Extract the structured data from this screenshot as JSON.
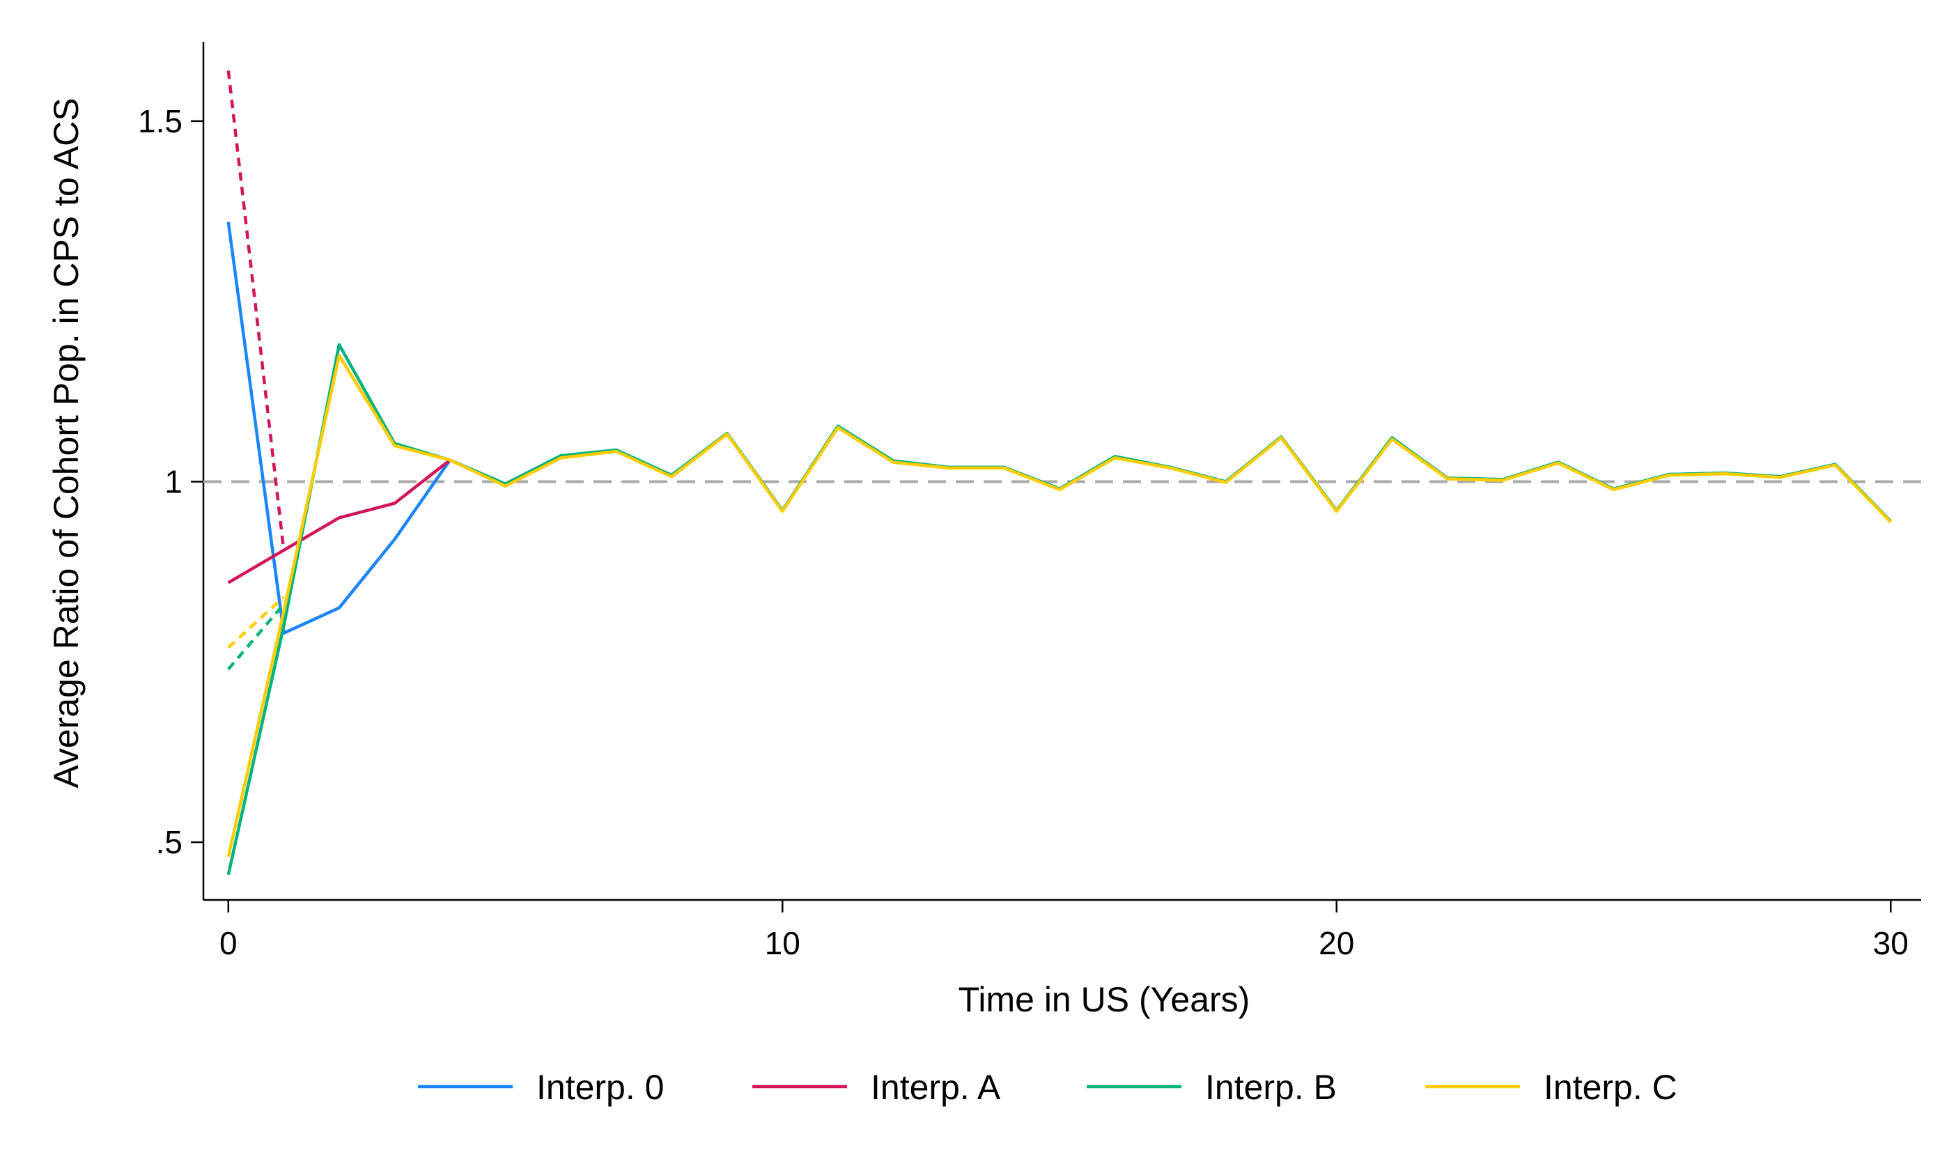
{
  "chart_data": {
    "type": "line",
    "title": "",
    "xlabel": "Time in US (Years)",
    "ylabel": "Average Ratio of Cohort Pop. in CPS to ACS",
    "xlim": [
      -0.45,
      30.55
    ],
    "ylim": [
      0.42,
      1.61
    ],
    "x_ticks": [
      0,
      10,
      20,
      30
    ],
    "y_ticks": [
      0.5,
      1,
      1.5
    ],
    "x_tick_labels": [
      "0",
      "10",
      "20",
      "30"
    ],
    "y_tick_labels": [
      ".5",
      "1",
      "1.5"
    ],
    "grid": false,
    "legend_position": "bottom",
    "reference_line": {
      "y": 1,
      "style": "dashed",
      "color": "#aaaaaa"
    },
    "series": [
      {
        "name": "Interp. 0",
        "color": "#1a85ff",
        "points": [
          [
            0,
            1.36
          ],
          [
            1,
            0.79
          ],
          [
            2,
            0.825
          ],
          [
            3,
            0.92
          ],
          [
            4,
            1.03
          ],
          [
            5,
            0.995
          ],
          [
            6,
            1.035
          ],
          [
            7,
            1.043
          ],
          [
            8,
            1.008
          ],
          [
            9,
            1.067
          ],
          [
            10,
            0.96
          ],
          [
            11,
            1.076
          ],
          [
            12,
            1.028
          ],
          [
            13,
            1.02
          ],
          [
            14,
            1.02
          ],
          [
            15,
            0.99
          ],
          [
            16,
            1.034
          ],
          [
            17,
            1.02
          ],
          [
            18,
            1.0
          ],
          [
            19,
            1.062
          ],
          [
            20,
            0.96
          ],
          [
            21,
            1.06
          ],
          [
            22,
            1.005
          ],
          [
            23,
            1.003
          ],
          [
            24,
            1.027
          ],
          [
            25,
            0.99
          ],
          [
            26,
            1.01
          ],
          [
            27,
            1.012
          ],
          [
            28,
            1.007
          ],
          [
            29,
            1.024
          ],
          [
            30,
            0.945
          ]
        ],
        "dashed_segments": []
      },
      {
        "name": "Interp. A",
        "color": "#d4145a",
        "points": [
          [
            0,
            0.86
          ],
          [
            1,
            0.905
          ],
          [
            2,
            0.95
          ],
          [
            3,
            0.97
          ],
          [
            4,
            1.03
          ]
        ],
        "dashed_segments": [
          [
            [
              0,
              1.57
            ],
            [
              1,
              0.905
            ]
          ]
        ]
      },
      {
        "name": "Interp. B",
        "color": "#00b37e",
        "points": [
          [
            0,
            0.455
          ],
          [
            1,
            0.8
          ],
          [
            2,
            1.19
          ],
          [
            3,
            1.053
          ],
          [
            4,
            1.03
          ],
          [
            5,
            0.997
          ],
          [
            6,
            1.036
          ],
          [
            7,
            1.044
          ],
          [
            8,
            1.009
          ],
          [
            9,
            1.067
          ],
          [
            10,
            0.96
          ],
          [
            11,
            1.077
          ],
          [
            12,
            1.029
          ],
          [
            13,
            1.02
          ],
          [
            14,
            1.02
          ],
          [
            15,
            0.99
          ],
          [
            16,
            1.035
          ],
          [
            17,
            1.02
          ],
          [
            18,
            1.0
          ],
          [
            19,
            1.062
          ],
          [
            20,
            0.96
          ],
          [
            21,
            1.061
          ],
          [
            22,
            1.005
          ],
          [
            23,
            1.003
          ],
          [
            24,
            1.027
          ],
          [
            25,
            0.99
          ],
          [
            26,
            1.01
          ],
          [
            27,
            1.012
          ],
          [
            28,
            1.007
          ],
          [
            29,
            1.024
          ],
          [
            30,
            0.945
          ]
        ],
        "dashed_segments": [
          [
            [
              0,
              0.74
            ],
            [
              1,
              0.83
            ]
          ]
        ]
      },
      {
        "name": "Interp. C",
        "color": "#ffcc00",
        "points": [
          [
            0,
            0.48
          ],
          [
            1,
            0.82
          ],
          [
            2,
            1.175
          ],
          [
            3,
            1.05
          ],
          [
            4,
            1.03
          ],
          [
            5,
            0.994
          ],
          [
            6,
            1.033
          ],
          [
            7,
            1.042
          ],
          [
            8,
            1.007
          ],
          [
            9,
            1.066
          ],
          [
            10,
            0.959
          ],
          [
            11,
            1.075
          ],
          [
            12,
            1.027
          ],
          [
            13,
            1.019
          ],
          [
            14,
            1.019
          ],
          [
            15,
            0.989
          ],
          [
            16,
            1.033
          ],
          [
            17,
            1.019
          ],
          [
            18,
            0.999
          ],
          [
            19,
            1.061
          ],
          [
            20,
            0.959
          ],
          [
            21,
            1.059
          ],
          [
            22,
            1.004
          ],
          [
            23,
            1.002
          ],
          [
            24,
            1.026
          ],
          [
            25,
            0.989
          ],
          [
            26,
            1.009
          ],
          [
            27,
            1.011
          ],
          [
            28,
            1.006
          ],
          [
            29,
            1.023
          ],
          [
            30,
            0.944
          ]
        ],
        "dashed_segments": [
          [
            [
              0,
              0.77
            ],
            [
              1,
              0.84
            ]
          ]
        ]
      }
    ]
  }
}
